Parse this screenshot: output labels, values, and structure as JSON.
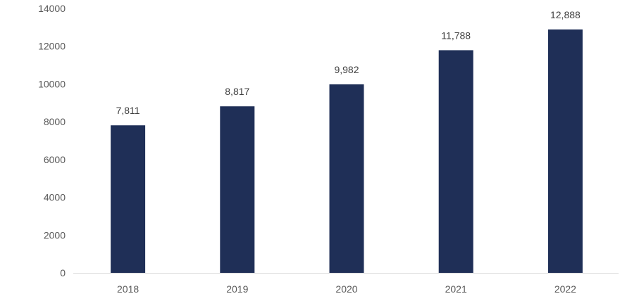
{
  "chart_data": {
    "type": "bar",
    "categories": [
      "2018",
      "2019",
      "2020",
      "2021",
      "2022"
    ],
    "values": [
      7811,
      8817,
      9982,
      11788,
      12888
    ],
    "data_labels": [
      "7,811",
      "8,817",
      "9,982",
      "11,788",
      "12,888"
    ],
    "title": "",
    "xlabel": "",
    "ylabel": "",
    "ylim": [
      0,
      14000
    ],
    "yticks": [
      0,
      2000,
      4000,
      6000,
      8000,
      10000,
      12000,
      14000
    ],
    "ytick_labels": [
      "0",
      "2000",
      "4000",
      "6000",
      "8000",
      "10000",
      "12000",
      "14000"
    ],
    "grid": false,
    "legend": "none",
    "colors": {
      "bar": "#1f2f57",
      "axis": "#d9d9d9",
      "tick_text": "#595959",
      "label_text": "#404040"
    }
  }
}
